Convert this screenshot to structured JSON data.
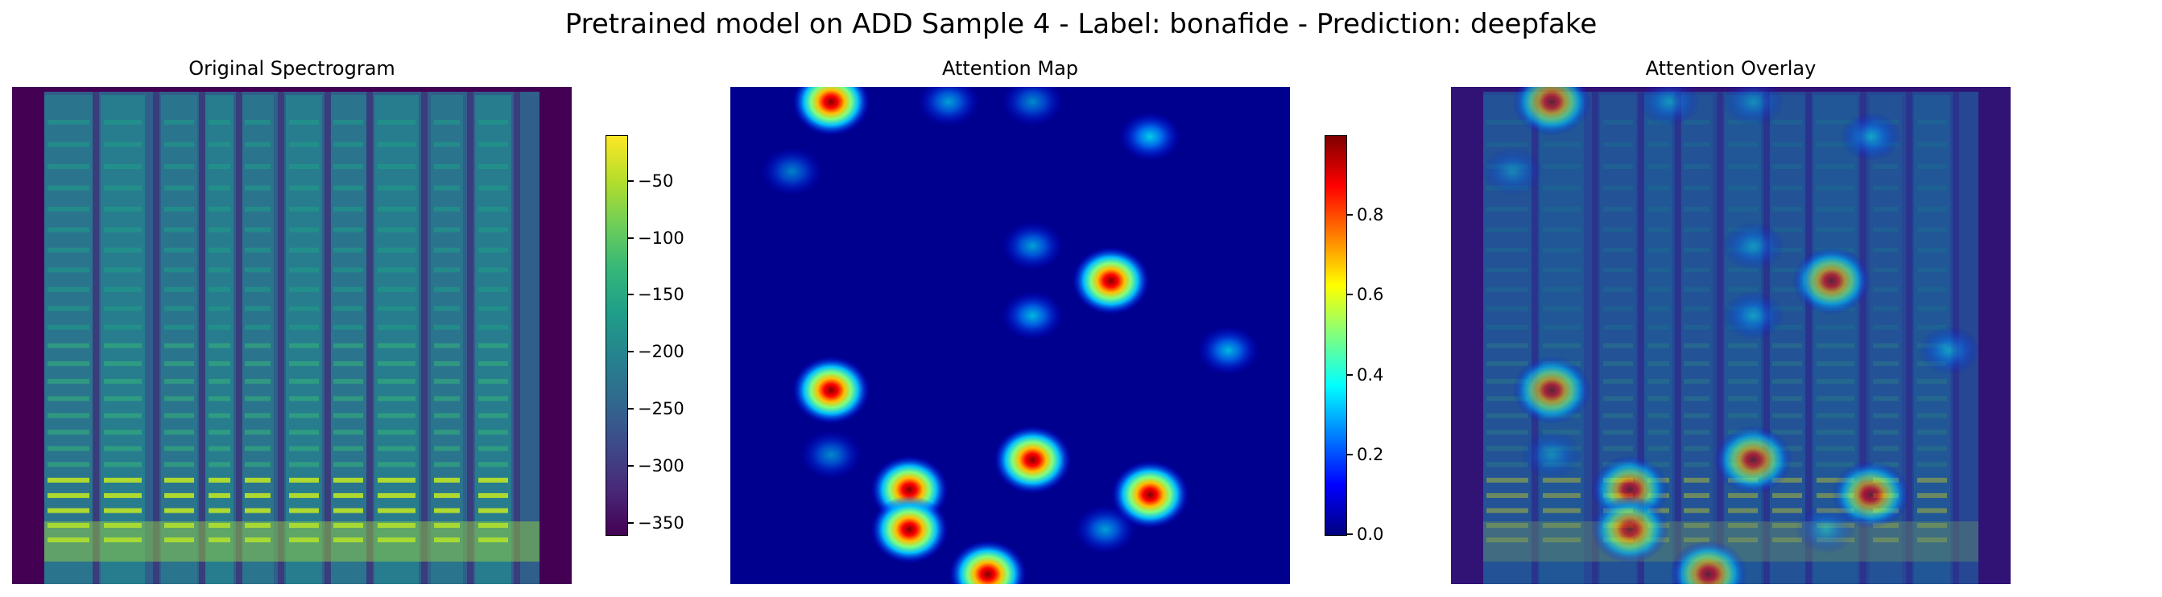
{
  "suptitle": "Pretrained model on ADD Sample 4 - Label: bonafide - Prediction: deepfake",
  "chart_data": [
    {
      "type": "heatmap",
      "title": "Original Spectrogram",
      "colormap": "viridis",
      "colorbar": {
        "min": -360,
        "max": -10,
        "ticks": [
          -50,
          -100,
          -150,
          -200,
          -250,
          -300,
          -350
        ],
        "tick_labels": [
          "−50",
          "−100",
          "−150",
          "−200",
          "−250",
          "−300",
          "−350"
        ]
      },
      "axes_visible": false
    },
    {
      "type": "heatmap",
      "title": "Attention Map",
      "colormap": "jet",
      "colorbar": {
        "min": 0.0,
        "max": 1.0,
        "ticks": [
          0.8,
          0.6,
          0.4,
          0.2,
          0.0
        ],
        "tick_labels": [
          "0.8",
          "0.6",
          "0.4",
          "0.2",
          "0.0"
        ]
      },
      "axes_visible": false,
      "hotspots": [
        {
          "x": 0.18,
          "y": 0.03,
          "value": 0.95
        },
        {
          "x": 0.39,
          "y": 0.03,
          "value": 0.35
        },
        {
          "x": 0.54,
          "y": 0.03,
          "value": 0.3
        },
        {
          "x": 0.75,
          "y": 0.1,
          "value": 0.45
        },
        {
          "x": 0.11,
          "y": 0.17,
          "value": 0.28
        },
        {
          "x": 0.54,
          "y": 0.32,
          "value": 0.35
        },
        {
          "x": 0.68,
          "y": 0.39,
          "value": 0.98
        },
        {
          "x": 0.54,
          "y": 0.46,
          "value": 0.4
        },
        {
          "x": 0.89,
          "y": 0.53,
          "value": 0.4
        },
        {
          "x": 0.18,
          "y": 0.61,
          "value": 0.98
        },
        {
          "x": 0.18,
          "y": 0.74,
          "value": 0.3
        },
        {
          "x": 0.54,
          "y": 0.75,
          "value": 0.98
        },
        {
          "x": 0.32,
          "y": 0.81,
          "value": 0.98
        },
        {
          "x": 0.32,
          "y": 0.89,
          "value": 0.98
        },
        {
          "x": 0.75,
          "y": 0.82,
          "value": 0.98
        },
        {
          "x": 0.67,
          "y": 0.89,
          "value": 0.35
        },
        {
          "x": 0.46,
          "y": 0.98,
          "value": 0.98
        }
      ]
    },
    {
      "type": "heatmap",
      "title": "Attention Overlay",
      "composition": "spectrogram with attention map overlay",
      "axes_visible": false
    }
  ]
}
